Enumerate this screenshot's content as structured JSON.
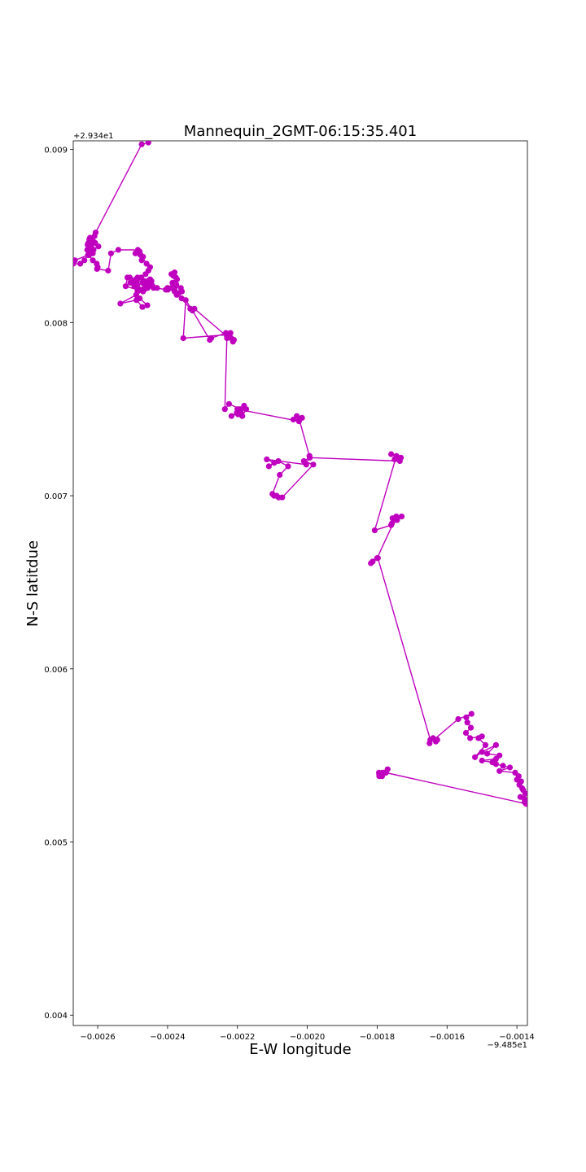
{
  "chart_data": {
    "type": "line",
    "title": "Mannequin_2GMT-06:15:35.401",
    "xlabel": "E-W longitude",
    "ylabel": "N-S latitdue",
    "x_offset_label": "−9.485e1",
    "y_offset_label": "+2.934e1",
    "x_offset": -94.85,
    "y_offset": 29.34,
    "xlim": [
      -0.00267,
      -0.00137
    ],
    "ylim": [
      0.00394,
      0.00905
    ],
    "x_ticks": [
      -0.0026,
      -0.0024,
      -0.0022,
      -0.002,
      -0.0018,
      -0.0016,
      -0.0014
    ],
    "x_tick_labels": [
      "−0.0026",
      "−0.0024",
      "−0.0022",
      "−0.0020",
      "−0.0018",
      "−0.0016",
      "−0.0014"
    ],
    "y_ticks": [
      0.004,
      0.005,
      0.006,
      0.007,
      0.008,
      0.009
    ],
    "y_tick_labels": [
      "0.004",
      "0.005",
      "0.006",
      "0.007",
      "0.008",
      "0.009"
    ],
    "grid": false,
    "marker": "circle",
    "color": "#bf00bf",
    "series": [
      {
        "x": [
          -0.002455,
          -0.002474,
          -0.002606,
          -0.002609,
          -0.002613,
          -0.002619,
          -0.002624,
          -0.002622,
          -0.002627,
          -0.002617,
          -0.002614,
          -0.002625,
          -0.002638,
          -0.00265,
          -0.00267,
          -0.002665,
          -0.002628,
          -0.002612,
          -0.002598,
          -0.002607,
          -0.002618,
          -0.002629,
          -0.00263,
          -0.002625,
          -0.002614,
          -0.002603,
          -0.0026,
          -0.002602,
          -0.00257,
          -0.002562,
          -0.002541,
          -0.002485,
          -0.002492,
          -0.00248,
          -0.00247,
          -0.002474,
          -0.002477,
          -0.00248,
          -0.00246,
          -0.00245,
          -0.002455,
          -0.002463,
          -0.002475,
          -0.002467,
          -0.002446,
          -0.002459,
          -0.002488,
          -0.002495,
          -0.002507,
          -0.002487,
          -0.002476,
          -0.002456,
          -0.00245,
          -0.00244,
          -0.002465,
          -0.002459,
          -0.002472,
          -0.00247,
          -0.002486,
          -0.002478,
          -0.002486,
          -0.0025,
          -0.002515,
          -0.00252,
          -0.002486,
          -0.00247,
          -0.002457,
          -0.002448,
          -0.002458,
          -0.002471,
          -0.002491,
          -0.002508,
          -0.00248,
          -0.002458,
          -0.002472,
          -0.002489,
          -0.002535,
          -0.00249,
          -0.002467,
          -0.002457,
          -0.00245,
          -0.00243,
          -0.002405,
          -0.0024,
          -0.00238,
          -0.002368,
          -0.002359,
          -0.002362,
          -0.002378,
          -0.002386,
          -0.002376,
          -0.00238,
          -0.002389,
          -0.002383,
          -0.002373,
          -0.002375,
          -0.002389,
          -0.002399,
          -0.0024,
          -0.002389,
          -0.00238,
          -0.002374,
          -0.00236,
          -0.002335,
          -0.002323,
          -0.00223,
          -0.002213,
          -0.002225,
          -0.00223,
          -0.002218,
          -0.00221,
          -0.00223,
          -0.00222,
          -0.002233,
          -0.002275,
          -0.002279,
          -0.002329,
          -0.002348,
          -0.002355,
          -0.00223,
          -0.002236,
          -0.002224,
          -0.002192,
          -0.002198,
          -0.002186,
          -0.002175,
          -0.002181,
          -0.002202,
          -0.002217,
          -0.00219,
          -0.0022,
          -0.002024,
          -0.00204,
          -0.00203,
          -0.002015,
          -0.002023,
          -0.001994,
          -0.002003,
          -0.002116,
          -0.002095,
          -0.00211,
          -0.002083,
          -0.002055,
          -0.002079,
          -0.0021,
          -0.002095,
          -0.002088,
          -0.002082,
          -0.002072,
          -0.001983,
          -0.00201,
          -0.001993,
          -0.001735,
          -0.00175,
          -0.001732,
          -0.00176,
          -0.001745,
          -0.001807,
          -0.00176,
          -0.001745,
          -0.00173,
          -0.001743,
          -0.001758,
          -0.001756,
          -0.001745,
          -0.0018,
          -0.001818,
          -0.001813,
          -0.001798,
          -0.001648,
          -0.001632,
          -0.001628,
          -0.00164,
          -0.00165,
          -0.001568,
          -0.00153,
          -0.001545,
          -0.001542,
          -0.001532,
          -0.001546,
          -0.001534,
          -0.0015,
          -0.00151,
          -0.00149,
          -0.00152,
          -0.0015,
          -0.00146,
          -0.001485,
          -0.00145,
          -0.00146,
          -0.0015,
          -0.00147,
          -0.00146,
          -0.00144,
          -0.00142,
          -0.00145,
          -0.001405,
          -0.001395,
          -0.0014,
          -0.001388,
          -0.001393,
          -0.001385,
          -0.001382,
          -0.001376,
          -0.001379,
          -0.00139,
          -0.001373,
          -0.001378,
          -0.001374,
          -0.001373,
          -0.001775,
          -0.001794,
          -0.001786,
          -0.001795,
          -0.00177,
          -0.001785,
          -0.001794,
          -0.001785,
          -0.00178
        ],
        "y": [
          0.00904,
          0.00903,
          0.00852,
          0.0085,
          0.00847,
          0.00844,
          0.00848,
          0.00849,
          0.00846,
          0.00843,
          0.0084,
          0.0084,
          0.00836,
          0.00834,
          0.00834,
          0.00836,
          0.00839,
          0.00842,
          0.00844,
          0.00846,
          0.00848,
          0.00845,
          0.00842,
          0.00839,
          0.00836,
          0.00834,
          0.00832,
          0.00831,
          0.0083,
          0.0084,
          0.00842,
          0.00842,
          0.0084,
          0.00841,
          0.00838,
          0.00836,
          0.00839,
          0.0084,
          0.00834,
          0.00832,
          0.0083,
          0.00828,
          0.00826,
          0.00824,
          0.00824,
          0.00822,
          0.00822,
          0.00821,
          0.00823,
          0.00825,
          0.00826,
          0.00824,
          0.00822,
          0.0082,
          0.0082,
          0.00822,
          0.00823,
          0.00819,
          0.00818,
          0.00819,
          0.00826,
          0.00824,
          0.00826,
          0.00821,
          0.00819,
          0.00818,
          0.0082,
          0.00822,
          0.00823,
          0.00823,
          0.00825,
          0.00826,
          0.00814,
          0.0081,
          0.00809,
          0.00813,
          0.00811,
          0.00816,
          0.00819,
          0.00821,
          0.00825,
          0.0082,
          0.00819,
          0.0082,
          0.00819,
          0.00817,
          0.00818,
          0.0082,
          0.00821,
          0.00823,
          0.00826,
          0.00829,
          0.00828,
          0.00827,
          0.00825,
          0.00822,
          0.0082,
          0.00819,
          0.0082,
          0.0082,
          0.00818,
          0.00816,
          0.00814,
          0.00808,
          0.00808,
          0.00792,
          0.00789,
          0.00793,
          0.00791,
          0.00791,
          0.0079,
          0.00792,
          0.00794,
          0.00794,
          0.00791,
          0.0079,
          0.00807,
          0.00813,
          0.00791,
          0.00793,
          0.0075,
          0.00753,
          0.0075,
          0.00747,
          0.00746,
          0.0075,
          0.00752,
          0.00748,
          0.00746,
          0.00748,
          0.0075,
          0.00743,
          0.00744,
          0.00746,
          0.00745,
          0.00744,
          0.00723,
          0.00718,
          0.00721,
          0.00719,
          0.00717,
          0.0072,
          0.00717,
          0.00712,
          0.00701,
          0.007,
          0.007,
          0.00699,
          0.00699,
          0.00718,
          0.0072,
          0.00722,
          0.0072,
          0.00721,
          0.00722,
          0.00724,
          0.00723,
          0.0068,
          0.00683,
          0.00686,
          0.00688,
          0.00686,
          0.00684,
          0.00687,
          0.00688,
          0.00664,
          0.00661,
          0.00662,
          0.00664,
          0.00559,
          0.00558,
          0.00559,
          0.0056,
          0.00557,
          0.00571,
          0.00574,
          0.00572,
          0.00569,
          0.00566,
          0.00563,
          0.0056,
          0.00561,
          0.0056,
          0.00556,
          0.00549,
          0.00552,
          0.00556,
          0.00551,
          0.0055,
          0.00548,
          0.00547,
          0.00546,
          0.00545,
          0.00544,
          0.00543,
          0.00541,
          0.0054,
          0.00538,
          0.00536,
          0.00535,
          0.00533,
          0.00531,
          0.0053,
          0.00528,
          0.00525,
          0.00526,
          0.00524,
          0.00523,
          0.00522,
          0.00522,
          0.0054,
          0.00539,
          0.00538,
          0.0054,
          0.00542,
          0.0054,
          0.00538,
          0.00539,
          0.0054
        ]
      }
    ]
  }
}
